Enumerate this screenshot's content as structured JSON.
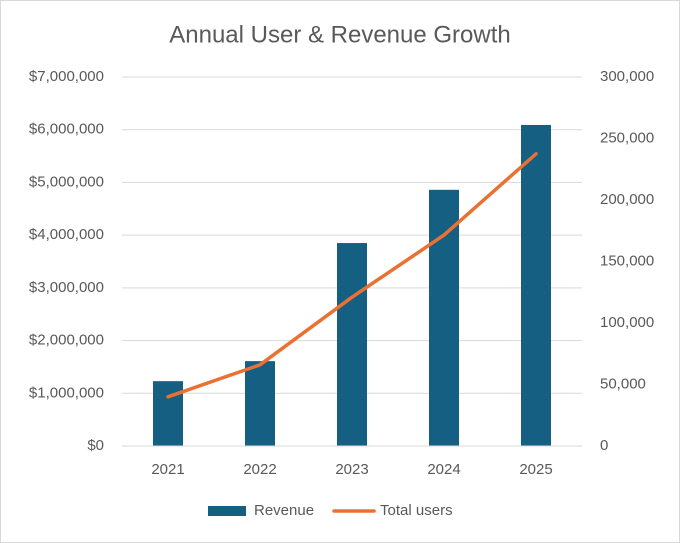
{
  "chart_data": {
    "type": "bar",
    "title": "Annual User & Revenue Growth",
    "categories": [
      "2021",
      "2022",
      "2023",
      "2024",
      "2025"
    ],
    "series": [
      {
        "name": "Revenue",
        "type": "bar",
        "color": "#156082",
        "values": [
          1230000,
          1610000,
          3850000,
          4860000,
          6090000
        ]
      },
      {
        "name": "Total users",
        "type": "line",
        "axis": "y2",
        "color": "#e97132",
        "values": [
          40000,
          66000,
          121000,
          171500,
          237500
        ]
      }
    ],
    "ylim": [
      0,
      7000000
    ],
    "yticks": [
      {
        "value": 0,
        "label": "$0"
      },
      {
        "value": 1000000,
        "label": "$1,000,000"
      },
      {
        "value": 2000000,
        "label": "$2,000,000"
      },
      {
        "value": 3000000,
        "label": "$3,000,000"
      },
      {
        "value": 4000000,
        "label": "$4,000,000"
      },
      {
        "value": 5000000,
        "label": "$5,000,000"
      },
      {
        "value": 6000000,
        "label": "$6,000,000"
      },
      {
        "value": 7000000,
        "label": "$7,000,000"
      }
    ],
    "y2lim": [
      0,
      300000
    ],
    "y2ticks": [
      0,
      {
        "value": 50000,
        "label": "50,000"
      },
      {
        "value": 100000,
        "label": "100,000"
      },
      {
        "value": 150000,
        "label": "150,000"
      },
      {
        "value": 200000,
        "label": "200,000"
      },
      {
        "value": 250000,
        "label": "250,000"
      },
      {
        "value": 300000,
        "label": "300,000"
      }
    ],
    "grid": true,
    "legend": "bottom"
  }
}
